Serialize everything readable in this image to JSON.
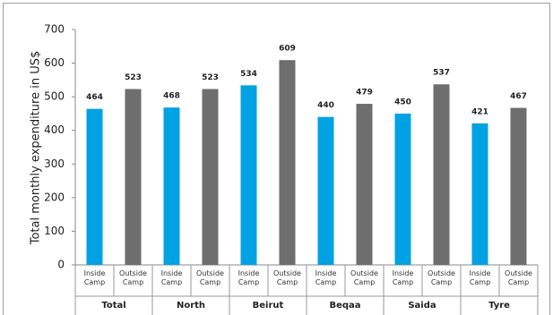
{
  "chart_data": {
    "type": "bar",
    "y_label": "Total monthly expenditure in US$",
    "categories": [
      "Total",
      "North",
      "Beirut",
      "Beqaa",
      "Saida",
      "Tyre"
    ],
    "series": [
      {
        "name": "Inside Camp",
        "color": "#00a2e3",
        "values": [
          464,
          468,
          534,
          440,
          450,
          421
        ]
      },
      {
        "name": "Outside Camp",
        "color": "#6e6e6e",
        "values": [
          523,
          523,
          609,
          479,
          537,
          467
        ]
      }
    ],
    "ylim": [
      0,
      700
    ],
    "yticks": [
      0,
      100,
      200,
      300,
      400,
      500,
      600,
      700
    ],
    "category_color": "#00a2e3"
  }
}
